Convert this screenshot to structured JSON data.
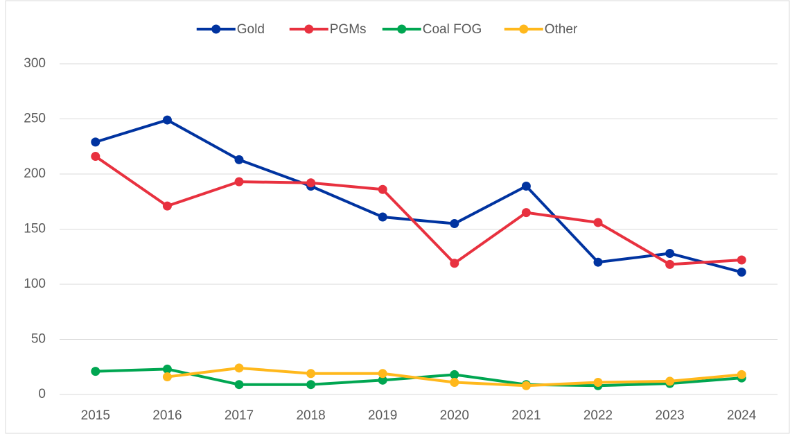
{
  "chart_data": {
    "type": "line",
    "categories": [
      "2015",
      "2016",
      "2017",
      "2018",
      "2019",
      "2020",
      "2021",
      "2022",
      "2023",
      "2024"
    ],
    "series": [
      {
        "name": "Gold",
        "color": "#0033a0",
        "values": [
          229,
          249,
          213,
          189,
          161,
          155,
          189,
          120,
          128,
          111
        ]
      },
      {
        "name": "PGMs",
        "color": "#e8313f",
        "values": [
          216,
          171,
          193,
          192,
          186,
          119,
          165,
          156,
          118,
          122
        ]
      },
      {
        "name": "Coal FOG",
        "color": "#00a651",
        "values": [
          21,
          23,
          9,
          9,
          13,
          18,
          9,
          8,
          10,
          15
        ]
      },
      {
        "name": "Other",
        "color": "#ffb81c",
        "values": [
          null,
          16,
          24,
          19,
          19,
          11,
          8,
          11,
          12,
          18
        ]
      }
    ],
    "ylim": [
      0,
      300
    ],
    "yticks": [
      0,
      50,
      100,
      150,
      200,
      250,
      300
    ],
    "grid": true,
    "legend": "top"
  }
}
